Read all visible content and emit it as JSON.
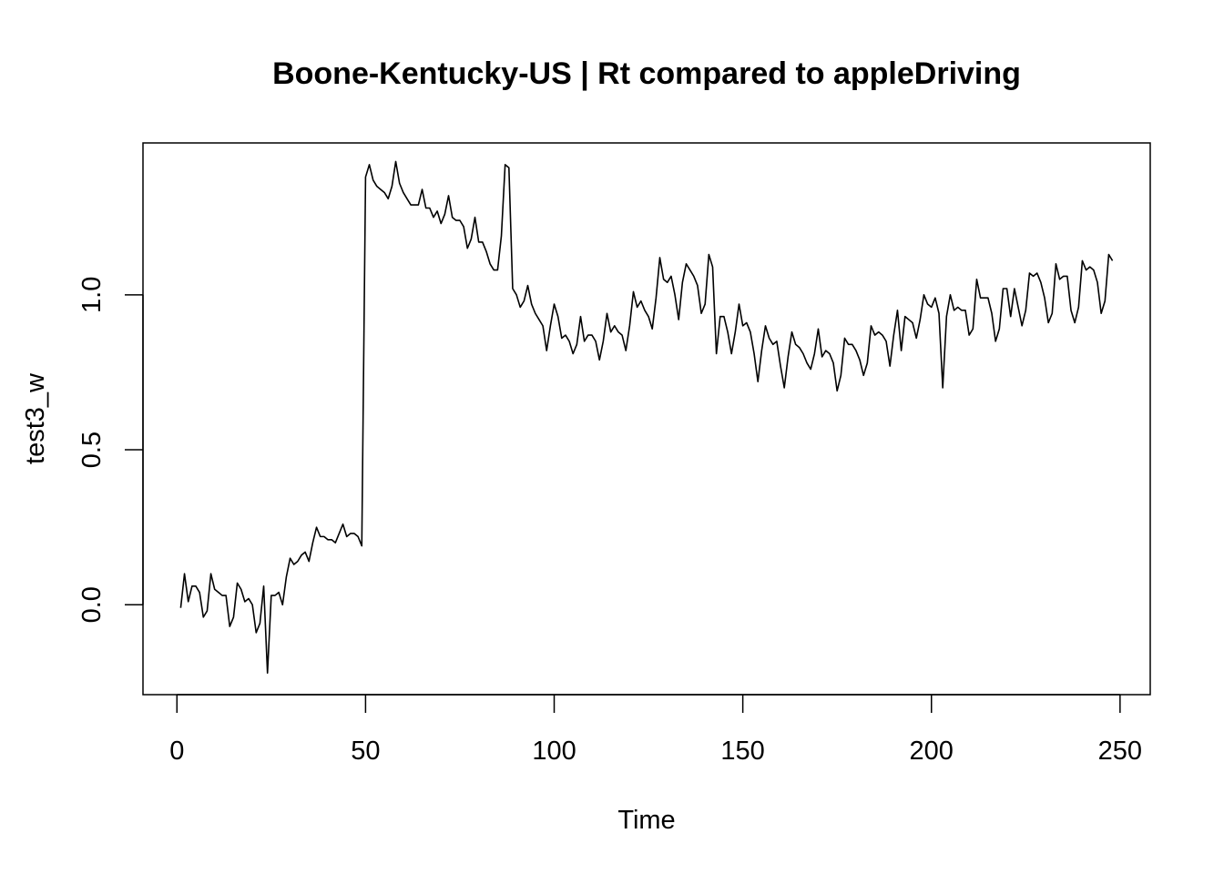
{
  "chart_data": {
    "type": "line",
    "title": "Boone-Kentucky-US | Rt compared to appleDriving",
    "xlabel": "Time",
    "ylabel": "test3_w",
    "xlim": [
      -9,
      258
    ],
    "ylim": [
      -0.29,
      1.49
    ],
    "x_ticks": [
      0,
      50,
      100,
      150,
      200,
      250
    ],
    "x_tick_labels": [
      "0",
      "50",
      "100",
      "150",
      "200",
      "250"
    ],
    "y_ticks": [
      0.0,
      0.5,
      1.0
    ],
    "y_tick_labels": [
      "0.0",
      "0.5",
      "1.0"
    ],
    "grid": false,
    "legend": "none",
    "line_color": "#000000",
    "series": [
      {
        "x_start": 1,
        "x_step": 1,
        "values": [
          -0.01,
          0.1,
          0.01,
          0.06,
          0.06,
          0.04,
          -0.04,
          -0.02,
          0.1,
          0.05,
          0.04,
          0.03,
          0.03,
          -0.07,
          -0.04,
          0.07,
          0.05,
          0.01,
          0.02,
          0.0,
          -0.09,
          -0.06,
          0.06,
          -0.22,
          0.03,
          0.03,
          0.04,
          0.0,
          0.09,
          0.15,
          0.13,
          0.14,
          0.16,
          0.17,
          0.14,
          0.2,
          0.25,
          0.22,
          0.22,
          0.21,
          0.21,
          0.2,
          0.23,
          0.26,
          0.22,
          0.23,
          0.23,
          0.22,
          0.19,
          1.38,
          1.42,
          1.37,
          1.35,
          1.34,
          1.33,
          1.31,
          1.35,
          1.43,
          1.36,
          1.33,
          1.31,
          1.29,
          1.29,
          1.29,
          1.34,
          1.28,
          1.28,
          1.25,
          1.27,
          1.23,
          1.26,
          1.32,
          1.25,
          1.24,
          1.24,
          1.22,
          1.15,
          1.18,
          1.25,
          1.17,
          1.17,
          1.14,
          1.1,
          1.08,
          1.08,
          1.19,
          1.42,
          1.41,
          1.02,
          1.0,
          0.96,
          0.98,
          1.03,
          0.97,
          0.94,
          0.92,
          0.9,
          0.82,
          0.9,
          0.97,
          0.93,
          0.86,
          0.87,
          0.85,
          0.81,
          0.84,
          0.93,
          0.85,
          0.87,
          0.87,
          0.85,
          0.79,
          0.85,
          0.94,
          0.88,
          0.9,
          0.88,
          0.87,
          0.82,
          0.9,
          1.01,
          0.96,
          0.98,
          0.95,
          0.93,
          0.89,
          0.99,
          1.12,
          1.05,
          1.04,
          1.06,
          1.0,
          0.92,
          1.04,
          1.1,
          1.08,
          1.06,
          1.03,
          0.94,
          0.97,
          1.13,
          1.09,
          0.81,
          0.93,
          0.93,
          0.88,
          0.81,
          0.88,
          0.97,
          0.9,
          0.91,
          0.88,
          0.81,
          0.72,
          0.82,
          0.9,
          0.86,
          0.84,
          0.85,
          0.77,
          0.7,
          0.8,
          0.88,
          0.84,
          0.83,
          0.81,
          0.78,
          0.76,
          0.81,
          0.89,
          0.8,
          0.82,
          0.81,
          0.78,
          0.69,
          0.74,
          0.86,
          0.84,
          0.84,
          0.82,
          0.79,
          0.74,
          0.78,
          0.9,
          0.87,
          0.88,
          0.87,
          0.85,
          0.77,
          0.87,
          0.95,
          0.82,
          0.93,
          0.92,
          0.91,
          0.86,
          0.92,
          1.0,
          0.97,
          0.96,
          0.99,
          0.94,
          0.7,
          0.93,
          1.0,
          0.95,
          0.96,
          0.95,
          0.95,
          0.87,
          0.89,
          1.05,
          0.99,
          0.99,
          0.99,
          0.94,
          0.85,
          0.89,
          1.02,
          1.02,
          0.93,
          1.02,
          0.96,
          0.9,
          0.95,
          1.07,
          1.06,
          1.07,
          1.04,
          0.99,
          0.91,
          0.94,
          1.1,
          1.05,
          1.06,
          1.06,
          0.95,
          0.91,
          0.96,
          1.11,
          1.08,
          1.09,
          1.08,
          1.04,
          0.94,
          0.98,
          1.13,
          1.11
        ]
      }
    ]
  }
}
